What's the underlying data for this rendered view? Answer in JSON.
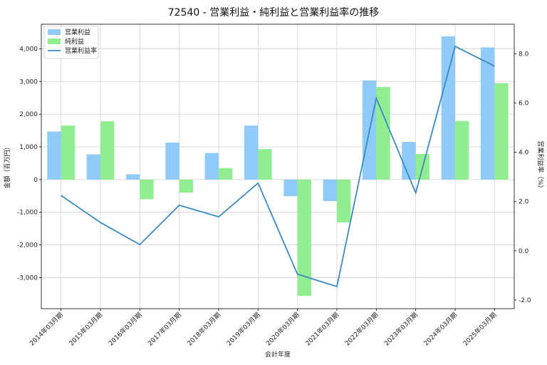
{
  "chart_data": {
    "type": "bar",
    "title": "72540 - 営業利益・純利益と営業利益率の推移",
    "xlabel": "会計年度",
    "ylabel": "金額（百万円）",
    "y2label": "営業利益率（%）",
    "categories": [
      "2014年03月期",
      "2015年03月期",
      "2016年03月期",
      "2017年03月期",
      "2018年03月期",
      "2019年03月期",
      "2020年03月期",
      "2021年03月期",
      "2022年03月期",
      "2023年03月期",
      "2024年03月期",
      "2025年03月期"
    ],
    "series": [
      {
        "name": "営業利益",
        "kind": "bar",
        "axis": "left",
        "color": "#90CAF9",
        "values": [
          1470,
          770,
          160,
          1130,
          810,
          1650,
          -510,
          -660,
          3030,
          1150,
          4380,
          4040
        ]
      },
      {
        "name": "純利益",
        "kind": "bar",
        "axis": "left",
        "color": "#90EE90",
        "values": [
          1650,
          1780,
          -600,
          -400,
          350,
          930,
          -3560,
          -1310,
          2830,
          780,
          1790,
          2950
        ]
      },
      {
        "name": "営業利益率",
        "kind": "line",
        "axis": "right",
        "color": "#3A8BC4",
        "values": [
          2.25,
          1.15,
          0.25,
          1.85,
          1.38,
          2.75,
          -0.95,
          -1.45,
          6.2,
          2.35,
          8.3,
          7.5
        ]
      }
    ],
    "ylim": [
      -3950,
      4750
    ],
    "y2lim": [
      -2.35,
      9.2
    ],
    "yticks": [
      -3000,
      -2000,
      -1000,
      0,
      1000,
      2000,
      3000,
      4000
    ],
    "ytick_labels": [
      "-3,000",
      "-2,000",
      "-1,000",
      "0",
      "1,000",
      "2,000",
      "3,000",
      "4,000"
    ],
    "y2ticks": [
      -2.0,
      0.0,
      2.0,
      4.0,
      6.0,
      8.0
    ],
    "y2tick_labels": [
      "-2.0",
      "0.0",
      "2.0",
      "4.0",
      "6.0",
      "8.0"
    ],
    "grid": true,
    "legend_position": "top-left"
  }
}
